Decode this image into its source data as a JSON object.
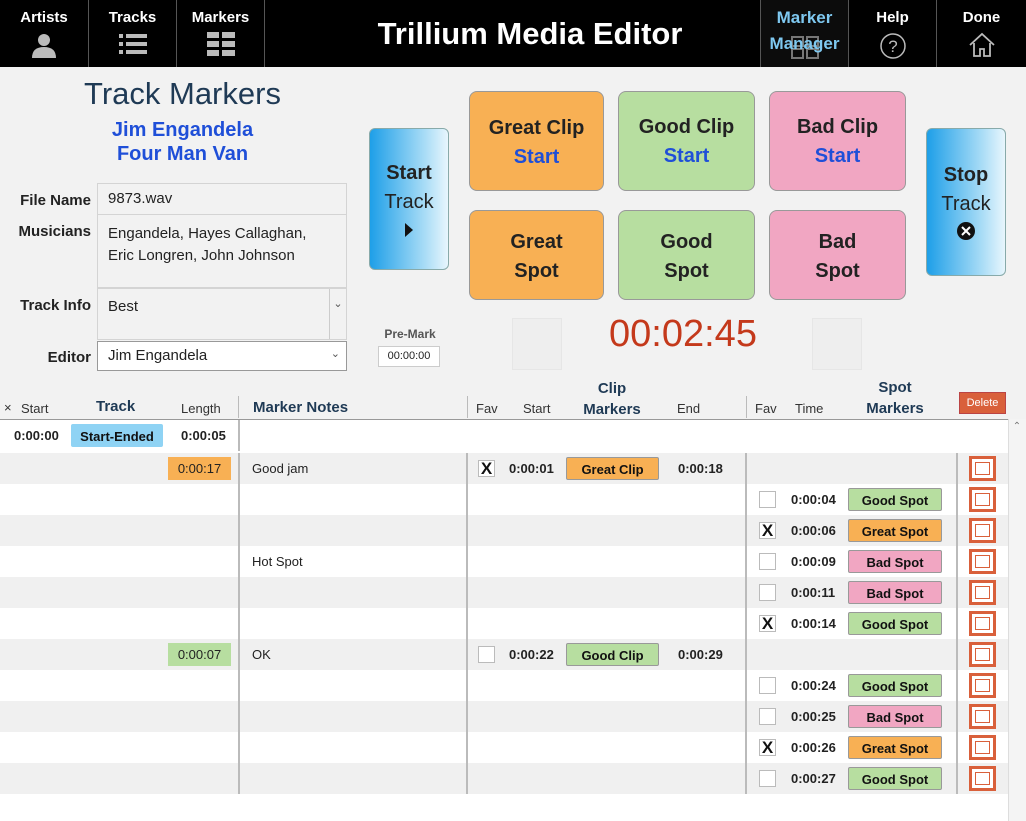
{
  "nav": {
    "artists": "Artists",
    "tracks": "Tracks",
    "markers": "Markers",
    "title": "Trillium Media Editor",
    "marker_manager_line1": "Marker",
    "marker_manager_line2": "Manager",
    "help": "Help",
    "done": "Done"
  },
  "info": {
    "heading": "Track Markers",
    "artist": "Jim Engandela",
    "track_title": "Four Man Van",
    "file_name_label": "File Name",
    "file_name": "9873.wav",
    "musicians_label": "Musicians",
    "musicians_line1": "Engandela, Hayes Callaghan,",
    "musicians_line2": "Eric Longren, John Johnson",
    "track_info_label": "Track Info",
    "track_info": "Best",
    "editor_label": "Editor",
    "editor": "Jim Engandela"
  },
  "controls": {
    "start_track_1": "Start",
    "start_track_2": "Track",
    "stop_track_1": "Stop",
    "stop_track_2": "Track",
    "great_clip_1": "Great  Clip",
    "great_clip_2": "Start",
    "good_clip_1": "Good Clip",
    "good_clip_2": "Start",
    "bad_clip_1": "Bad Clip",
    "bad_clip_2": "Start",
    "great_spot_1": "Great",
    "great_spot_2": "Spot",
    "good_spot_1": "Good",
    "good_spot_2": "Spot",
    "bad_spot_1": "Bad",
    "bad_spot_2": "Spot",
    "premark_label": "Pre-Mark",
    "premark_value": "00:00:00",
    "timer": "00:02:45"
  },
  "table_header": {
    "close": "×",
    "start": "Start",
    "track": "Track",
    "length": "Length",
    "notes": "Marker Notes",
    "clip_fav": "Fav",
    "clip_start": "Start",
    "clip_markers_1": "Clip",
    "clip_markers_2": "Markers",
    "clip_end": "End",
    "spot_fav": "Fav",
    "spot_time": "Time",
    "spot_markers_1": "Spot",
    "spot_markers_2": "Markers",
    "delete": "Delete"
  },
  "track_row": {
    "start": "0:00:00",
    "status": "Start-Ended",
    "length": "0:00:05"
  },
  "rows": [
    {
      "length": "0:00:17",
      "length_color": "#f8b054",
      "notes": "Good jam",
      "clip_fav": "X",
      "clip_start": "0:00:01",
      "clip_marker": "Great Clip",
      "clip_color": "#f8b054",
      "clip_end": "0:00:18"
    },
    {
      "spot_fav": "",
      "spot_time": "0:00:04",
      "spot_marker": "Good Spot",
      "spot_color": "#b7dea0"
    },
    {
      "spot_fav": "X",
      "spot_time": "0:00:06",
      "spot_marker": "Great Spot",
      "spot_color": "#f8b054"
    },
    {
      "notes": "Hot Spot",
      "spot_fav": "",
      "spot_time": "0:00:09",
      "spot_marker": "Bad Spot",
      "spot_color": "#f1a6c2"
    },
    {
      "spot_fav": "",
      "spot_time": "0:00:11",
      "spot_marker": "Bad Spot",
      "spot_color": "#f1a6c2"
    },
    {
      "spot_fav": "X",
      "spot_time": "0:00:14",
      "spot_marker": "Good Spot",
      "spot_color": "#b7dea0"
    },
    {
      "length": "0:00:07",
      "length_color": "#b7dea0",
      "notes": "OK",
      "clip_fav": "",
      "clip_start": "0:00:22",
      "clip_marker": "Good Clip",
      "clip_color": "#b7dea0",
      "clip_end": "0:00:29"
    },
    {
      "spot_fav": "",
      "spot_time": "0:00:24",
      "spot_marker": "Good Spot",
      "spot_color": "#b7dea0"
    },
    {
      "spot_fav": "",
      "spot_time": "0:00:25",
      "spot_marker": "Bad Spot",
      "spot_color": "#f1a6c2"
    },
    {
      "spot_fav": "X",
      "spot_time": "0:00:26",
      "spot_marker": "Great Spot",
      "spot_color": "#f8b054"
    },
    {
      "spot_fav": "",
      "spot_time": "0:00:27",
      "spot_marker": "Good Spot",
      "spot_color": "#b7dea0"
    }
  ]
}
